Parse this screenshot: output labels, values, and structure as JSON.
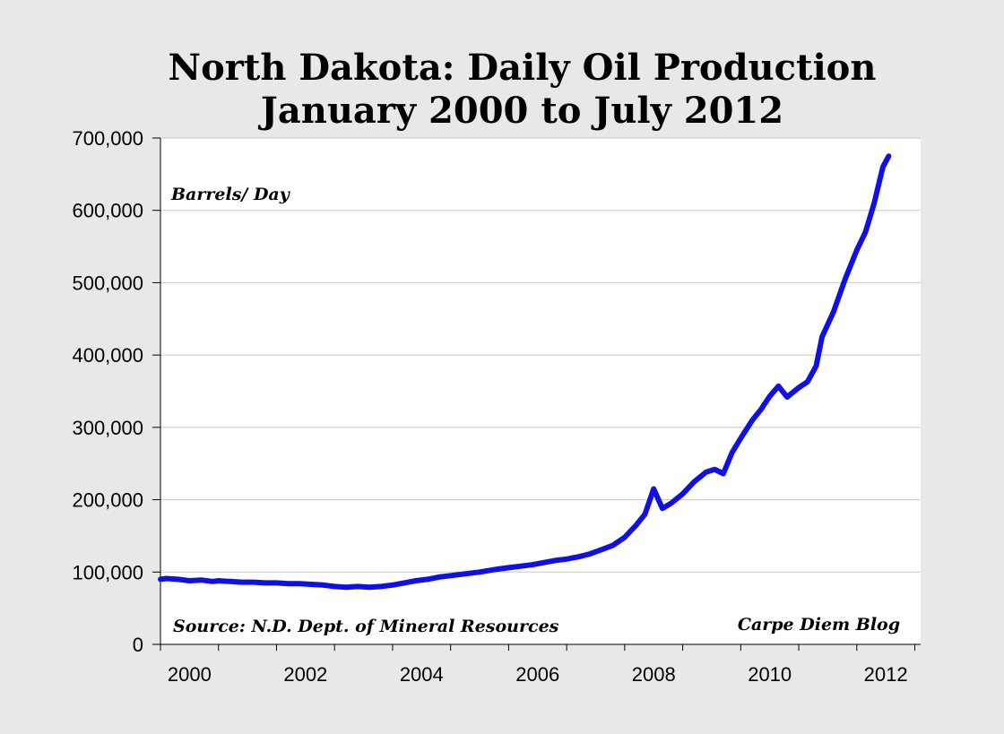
{
  "chart_data": {
    "type": "line",
    "title_lines": [
      "North Dakota: Daily Oil Production",
      "January 2000 to July 2012"
    ],
    "ylabel": "Barrels/ Day",
    "source_note": "Source: N.D. Dept. of Mineral Resources",
    "credit_note": "Carpe Diem Blog",
    "ylim": [
      0,
      700000
    ],
    "xlim": [
      2000.0,
      2013.1
    ],
    "y_ticks": [
      0,
      100000,
      200000,
      300000,
      400000,
      500000,
      600000,
      700000
    ],
    "y_tick_labels": [
      "0",
      "100,000",
      "200,000",
      "300,000",
      "400,000",
      "500,000",
      "600,000",
      "700,000"
    ],
    "x_tick_labels": [
      {
        "year": 2000,
        "label": "2000"
      },
      {
        "year": 2002,
        "label": "2002"
      },
      {
        "year": 2004,
        "label": "2004"
      },
      {
        "year": 2006,
        "label": "2006"
      },
      {
        "year": 2008,
        "label": "2008"
      },
      {
        "year": 2010,
        "label": "2010"
      },
      {
        "year": 2012,
        "label": "2012"
      }
    ],
    "grid": true,
    "line_color": "#1010e6",
    "series": [
      {
        "name": "Daily Oil Production",
        "x": [
          2000.0,
          2000.1,
          2000.3,
          2000.5,
          2000.7,
          2000.9,
          2001.0,
          2001.2,
          2001.4,
          2001.6,
          2001.8,
          2002.0,
          2002.2,
          2002.4,
          2002.6,
          2002.8,
          2003.0,
          2003.2,
          2003.4,
          2003.6,
          2003.8,
          2004.0,
          2004.2,
          2004.4,
          2004.6,
          2004.8,
          2005.0,
          2005.2,
          2005.5,
          2005.8,
          2006.0,
          2006.2,
          2006.4,
          2006.6,
          2006.8,
          2007.0,
          2007.2,
          2007.4,
          2007.6,
          2007.8,
          2008.0,
          2008.2,
          2008.35,
          2008.5,
          2008.65,
          2008.8,
          2009.0,
          2009.2,
          2009.4,
          2009.55,
          2009.7,
          2009.85,
          2010.0,
          2010.2,
          2010.35,
          2010.5,
          2010.65,
          2010.8,
          2011.0,
          2011.15,
          2011.3,
          2011.4,
          2011.6,
          2011.8,
          2012.0,
          2012.15,
          2012.3,
          2012.45,
          2012.55
        ],
        "values": [
          90000,
          91000,
          90000,
          88000,
          89000,
          87000,
          88000,
          87000,
          86000,
          86000,
          85000,
          85000,
          84000,
          84000,
          83000,
          82000,
          80000,
          79000,
          80000,
          79000,
          80000,
          82000,
          85000,
          88000,
          90000,
          93000,
          95000,
          97000,
          100000,
          104000,
          106000,
          108000,
          110000,
          113000,
          116000,
          118000,
          121000,
          125000,
          131000,
          137000,
          148000,
          165000,
          180000,
          215000,
          188000,
          195000,
          208000,
          225000,
          238000,
          242000,
          236000,
          265000,
          285000,
          310000,
          325000,
          343000,
          357000,
          342000,
          355000,
          363000,
          385000,
          425000,
          460000,
          505000,
          545000,
          570000,
          610000,
          660000,
          675000
        ]
      }
    ]
  }
}
